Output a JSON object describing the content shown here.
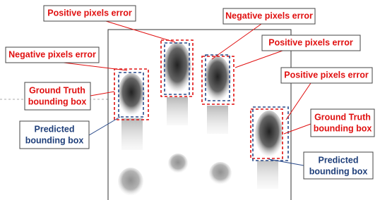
{
  "annotations": [
    {
      "lines": [
        "Positive pixels error"
      ],
      "kind": "error"
    },
    {
      "lines": [
        "Negative pixels error"
      ],
      "kind": "error"
    },
    {
      "lines": [
        "Positive pixels error"
      ],
      "kind": "error"
    },
    {
      "lines": [
        "Negative pixels error"
      ],
      "kind": "error"
    },
    {
      "lines": [
        "Positive pixels error"
      ],
      "kind": "error"
    },
    {
      "lines": [
        "Ground Truth",
        "bounding box"
      ],
      "kind": "truth"
    },
    {
      "lines": [
        "Ground Truth",
        "bounding box"
      ],
      "kind": "truth"
    },
    {
      "lines": [
        "Predicted",
        "bounding box"
      ],
      "kind": "predicted"
    },
    {
      "lines": [
        "Predicted",
        "bounding box"
      ],
      "kind": "predicted"
    }
  ]
}
